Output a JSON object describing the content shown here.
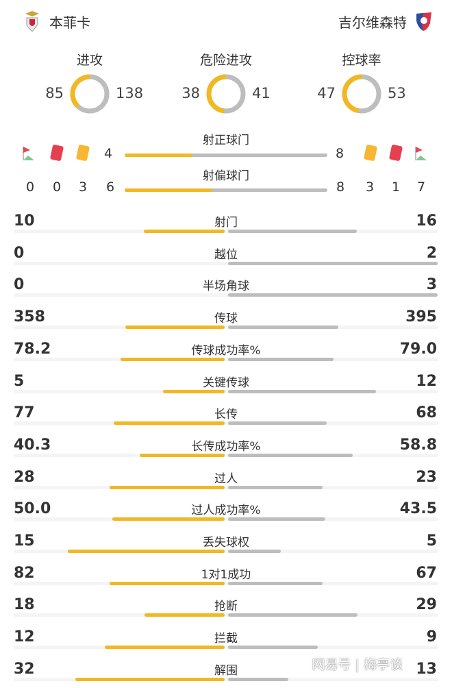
{
  "home": {
    "name": "本菲卡",
    "icon": "benfica-crest-icon"
  },
  "away": {
    "name": "吉尔维森特",
    "icon": "gil-vicente-crest-icon"
  },
  "colors": {
    "home": "#f2b824",
    "away": "#bdbdbd",
    "red_card": "#e5404f",
    "yellow_card": "#f7b733"
  },
  "donuts": [
    {
      "label": "进攻",
      "home": 85,
      "away": 138
    },
    {
      "label": "危险进攻",
      "home": 38,
      "away": 41
    },
    {
      "label": "控球率",
      "home": 47,
      "away": 53
    }
  ],
  "shots_on_target": {
    "label": "射正球门",
    "home": 4,
    "away": 8
  },
  "shots_off_target": {
    "label": "射偏球门",
    "home": 6,
    "away": 8
  },
  "cards": {
    "home": {
      "corners": 0,
      "red": 0,
      "yellow": 3
    },
    "away": {
      "yellow": 3,
      "red": 1,
      "corners": 7
    }
  },
  "stats": [
    {
      "label": "射门",
      "home": "10",
      "away": "16"
    },
    {
      "label": "越位",
      "home": "0",
      "away": "2"
    },
    {
      "label": "半场角球",
      "home": "0",
      "away": "3"
    },
    {
      "label": "传球",
      "home": "358",
      "away": "395"
    },
    {
      "label": "传球成功率%",
      "home": "78.2",
      "away": "79.0"
    },
    {
      "label": "关键传球",
      "home": "5",
      "away": "12"
    },
    {
      "label": "长传",
      "home": "77",
      "away": "68"
    },
    {
      "label": "长传成功率%",
      "home": "40.3",
      "away": "58.8"
    },
    {
      "label": "过人",
      "home": "28",
      "away": "23"
    },
    {
      "label": "过人成功率%",
      "home": "50.0",
      "away": "43.5"
    },
    {
      "label": "丢失球权",
      "home": "15",
      "away": "5"
    },
    {
      "label": "1对1成功",
      "home": "82",
      "away": "67"
    },
    {
      "label": "抢断",
      "home": "18",
      "away": "29"
    },
    {
      "label": "拦截",
      "home": "12",
      "away": "9"
    },
    {
      "label": "解围",
      "home": "32",
      "away": "13"
    }
  ],
  "watermark": "网易号 | 梅亭谈"
}
